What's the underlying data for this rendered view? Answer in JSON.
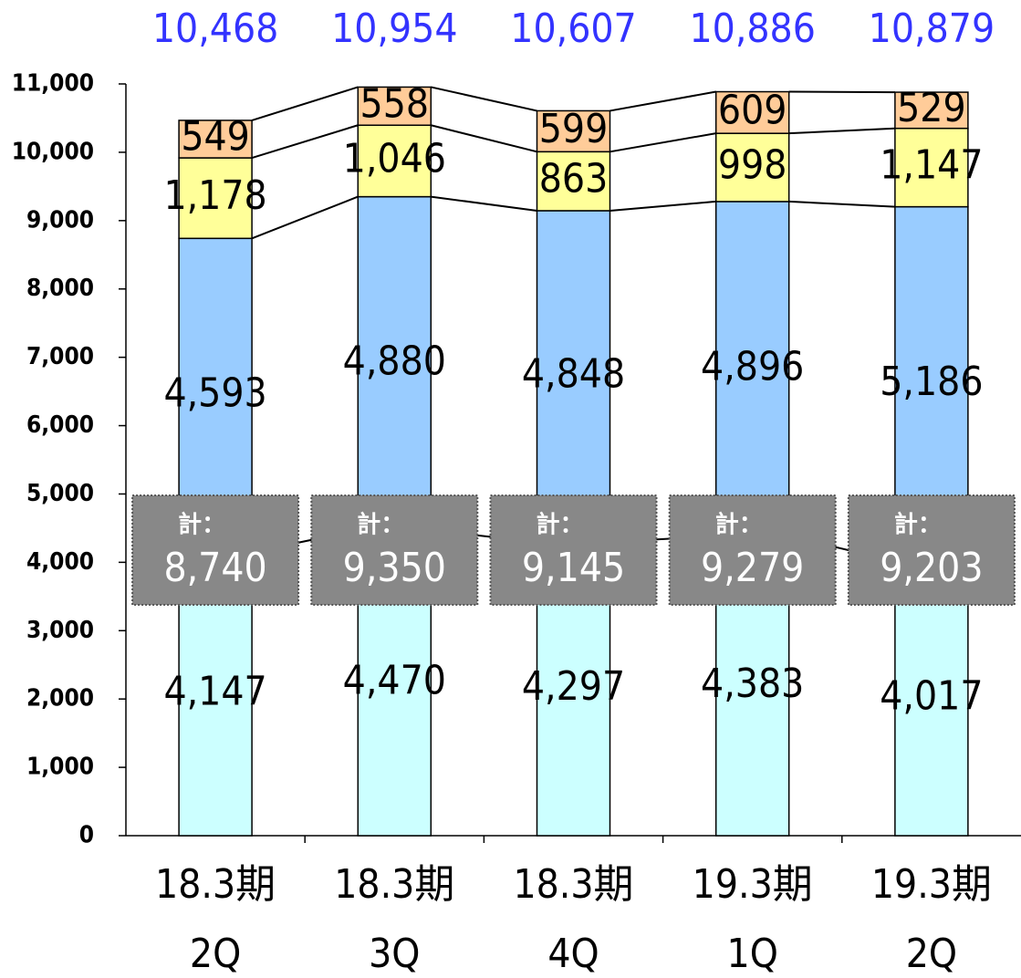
{
  "chart_data": {
    "type": "stacked_bar",
    "categories": [
      [
        "18.3期",
        "2Q"
      ],
      [
        "18.3期",
        "3Q"
      ],
      [
        "18.3期",
        "4Q"
      ],
      [
        "19.3期",
        "1Q"
      ],
      [
        "19.3期",
        "2Q"
      ]
    ],
    "series": [
      {
        "color": "#ccffff",
        "values": [
          4147,
          4470,
          4297,
          4383,
          4017
        ],
        "value_labels": [
          "4,147",
          "4,470",
          "4,297",
          "4,383",
          "4,017"
        ]
      },
      {
        "color": "#99ccff",
        "values": [
          4593,
          4880,
          4848,
          4896,
          5186
        ],
        "value_labels": [
          "4,593",
          "4,880",
          "4,848",
          "4,896",
          "5,186"
        ]
      },
      {
        "color": "#ffff99",
        "values": [
          1178,
          1046,
          863,
          998,
          1147
        ],
        "value_labels": [
          "1,178",
          "1,046",
          "863",
          "998",
          "1,147"
        ]
      },
      {
        "color": "#ffcc99",
        "values": [
          549,
          558,
          599,
          609,
          529
        ],
        "value_labels": [
          "549",
          "558",
          "599",
          "609",
          "529"
        ]
      }
    ],
    "subtotal_label": "計：",
    "subtotals": {
      "values": [
        8740,
        9350,
        9145,
        9279,
        9203
      ],
      "value_labels": [
        "8,740",
        "9,350",
        "9,145",
        "9,279",
        "9,203"
      ]
    },
    "totals": {
      "color": "#3333ff",
      "values": [
        10468,
        10954,
        10607,
        10886,
        10879
      ],
      "value_labels": [
        "10,468",
        "10,954",
        "10,607",
        "10,886",
        "10,879"
      ]
    },
    "ylim": [
      0,
      11000
    ],
    "yticks": [
      {
        "value": 0,
        "label": "0"
      },
      {
        "value": 1000,
        "label": "1,000"
      },
      {
        "value": 2000,
        "label": "2,000"
      },
      {
        "value": 3000,
        "label": "3,000"
      },
      {
        "value": 4000,
        "label": "4,000"
      },
      {
        "value": 5000,
        "label": "5,000"
      },
      {
        "value": 6000,
        "label": "6,000"
      },
      {
        "value": 7000,
        "label": "7,000"
      },
      {
        "value": 8000,
        "label": "8,000"
      },
      {
        "value": 9000,
        "label": "9,000"
      },
      {
        "value": 10000,
        "label": "10,000"
      },
      {
        "value": 11000,
        "label": "11,000"
      }
    ]
  }
}
